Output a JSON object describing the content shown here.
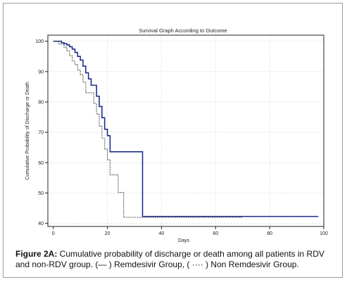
{
  "chart_data": {
    "type": "line",
    "title": "Survival Graph According to Outcome",
    "xlabel": "Days",
    "ylabel": "Cumulative Probability of Discharge or Death",
    "xlim": [
      -2,
      100
    ],
    "ylim": [
      39,
      102
    ],
    "x_ticks": [
      0,
      20,
      40,
      60,
      80,
      100
    ],
    "x_tick_labels": [
      "0",
      "20",
      "40",
      "60",
      "80",
      "100"
    ],
    "y_ticks": [
      40,
      50,
      60,
      70,
      80,
      90,
      100
    ],
    "y_tick_labels": [
      "40",
      "50",
      "60",
      "70",
      "80",
      "90",
      "100"
    ],
    "grid": true,
    "series": [
      {
        "style": "solid",
        "color": "#1f2f8c",
        "x": [
          0,
          3,
          4,
          5,
          6,
          7,
          8,
          9,
          10,
          11,
          12,
          13,
          14,
          15,
          16,
          17,
          18,
          19,
          20,
          21,
          22,
          33,
          33,
          98
        ],
        "y": [
          100,
          99.5,
          99.2,
          98.8,
          98.2,
          97.4,
          96.3,
          95.0,
          93.8,
          91.8,
          89.6,
          87.6,
          85.5,
          85.5,
          81.9,
          78.5,
          74.8,
          71.0,
          68.9,
          63.6,
          63.6,
          63.6,
          42.3,
          42.3
        ]
      },
      {
        "style": "dotted",
        "color": "#333333",
        "x": [
          0,
          2,
          4,
          5,
          6,
          7,
          8,
          9,
          10,
          11,
          12,
          14,
          15,
          16,
          17,
          18,
          19,
          20,
          21,
          23,
          24,
          26,
          70
        ],
        "y": [
          100,
          99.0,
          98.0,
          96.8,
          95.2,
          93.5,
          92.3,
          90.5,
          89.0,
          86.5,
          83.0,
          83.0,
          79.5,
          76.0,
          72.0,
          68.0,
          64.5,
          61.0,
          56.0,
          56.0,
          50.2,
          42.0,
          42.0
        ]
      }
    ]
  },
  "caption": {
    "figure_label": "Figure 2A:",
    "text": " Cumulative probability of discharge or death among all patients in RDV and non-RDV group. (— ) Remdesivir Group, ( ···· ) Non Remdesivir Group."
  }
}
